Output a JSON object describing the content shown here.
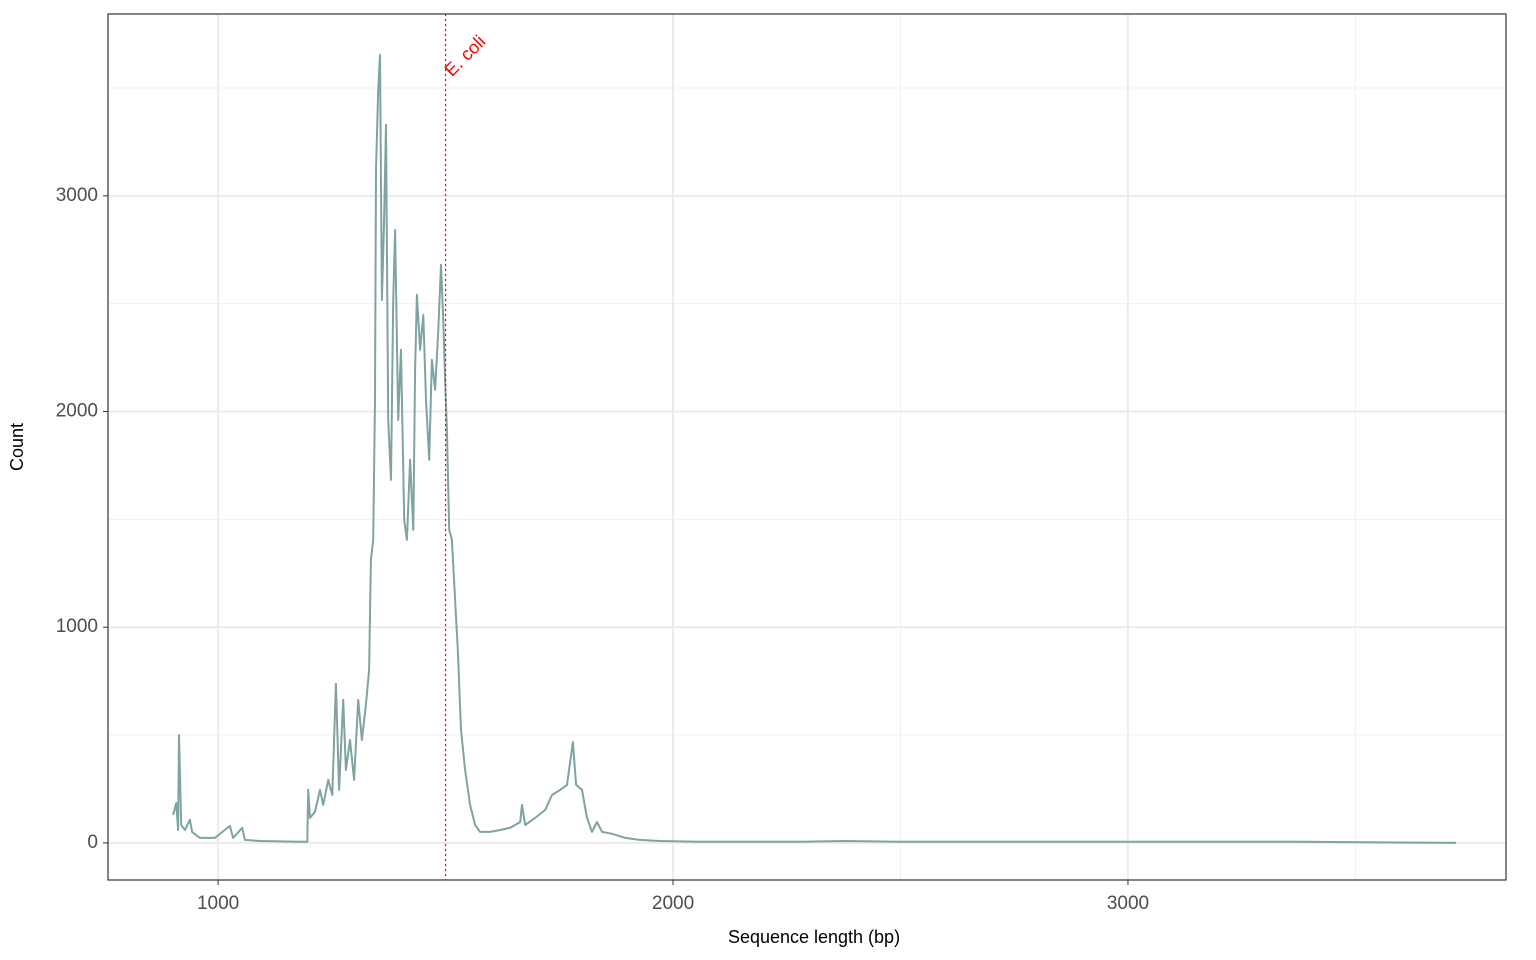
{
  "chart_data": {
    "type": "line",
    "x_label": "Sequence length (bp)",
    "y_label": "Count",
    "xlim": [
      758,
      3831
    ],
    "ylim": [
      -172,
      3843
    ],
    "xticks": [
      1000,
      2000,
      3000
    ],
    "yticks": [
      0,
      1000,
      2000,
      3000
    ],
    "x_minor_grid": [
      1500,
      2500,
      3500
    ],
    "y_minor_grid": [
      500,
      1500,
      2500,
      3500
    ],
    "grid": true,
    "vline": {
      "x": 1500,
      "label": "E. coli",
      "color": "#ff0000"
    },
    "series": [
      {
        "color": "#7fa3a0",
        "x": [
          901,
          908,
          912,
          914,
          919,
          927,
          938,
          943,
          960,
          993,
          1026,
          1033,
          1053,
          1059,
          1092,
          1180,
          1196,
          1198,
          1202,
          1213,
          1224,
          1231,
          1242,
          1251,
          1259,
          1266,
          1275,
          1281,
          1290,
          1299,
          1308,
          1316,
          1325,
          1332,
          1336,
          1341,
          1345,
          1347,
          1352,
          1356,
          1360,
          1365,
          1369,
          1374,
          1380,
          1385,
          1389,
          1396,
          1402,
          1409,
          1415,
          1422,
          1429,
          1433,
          1437,
          1444,
          1451,
          1457,
          1464,
          1470,
          1477,
          1484,
          1490,
          1495,
          1499,
          1503,
          1508,
          1514,
          1521,
          1527,
          1534,
          1543,
          1554,
          1565,
          1576,
          1598,
          1620,
          1642,
          1664,
          1668,
          1675,
          1697,
          1719,
          1734,
          1752,
          1767,
          1780,
          1787,
          1800,
          1811,
          1822,
          1833,
          1844,
          1866,
          1895,
          1927,
          1971,
          2059,
          2279,
          2378,
          2499,
          2719,
          3026,
          3378,
          3721
        ],
        "values": [
          130,
          185,
          60,
          500,
          83,
          60,
          107,
          50,
          23,
          23,
          79,
          23,
          70,
          14,
          9,
          5,
          5,
          246,
          116,
          144,
          246,
          176,
          292,
          222,
          737,
          246,
          663,
          338,
          477,
          292,
          663,
          477,
          640,
          802,
          1312,
          1405,
          2054,
          3120,
          3491,
          3653,
          2517,
          2888,
          3329,
          1961,
          1683,
          2517,
          2842,
          1961,
          2286,
          1497,
          1405,
          1776,
          1451,
          2193,
          2541,
          2286,
          2448,
          2054,
          1776,
          2240,
          2100,
          2378,
          2680,
          2425,
          2147,
          1915,
          1451,
          1405,
          1127,
          895,
          524,
          338,
          176,
          83,
          51,
          51,
          60,
          70,
          97,
          176,
          83,
          116,
          153,
          222,
          246,
          269,
          468,
          269,
          246,
          116,
          51,
          97,
          51,
          42,
          23,
          14,
          9,
          5,
          5,
          9,
          5,
          5,
          5,
          5,
          0
        ]
      }
    ]
  }
}
